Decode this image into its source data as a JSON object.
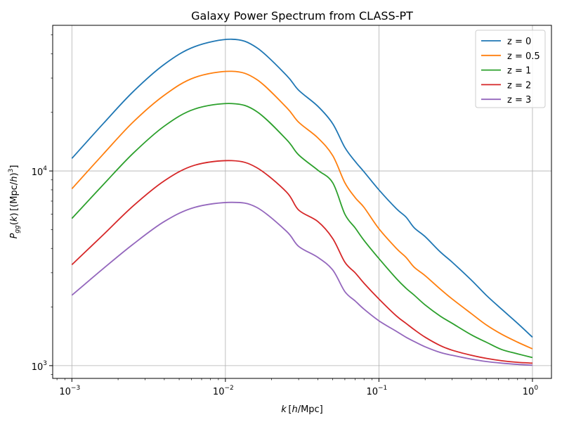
{
  "chart_data": {
    "type": "line",
    "title": "Galaxy Power Spectrum from CLASS-PT",
    "xlabel": "k [h/Mpc]",
    "ylabel": "P_gg(k) [(Mpc/h)^3]",
    "x_scale": "log",
    "y_scale": "log",
    "xlim": [
      0.00075,
      1.33
    ],
    "ylim": [
      860,
      56000
    ],
    "grid": true,
    "legend_position": "top-right",
    "x_ticks": [
      {
        "value": 0.001,
        "base": "10",
        "exp": "−3"
      },
      {
        "value": 0.01,
        "base": "10",
        "exp": "−2"
      },
      {
        "value": 0.1,
        "base": "10",
        "exp": "−1"
      },
      {
        "value": 1,
        "base": "10",
        "exp": "0"
      }
    ],
    "y_ticks": [
      {
        "value": 1000,
        "base": "10",
        "exp": "3"
      },
      {
        "value": 10000,
        "base": "10",
        "exp": "4"
      }
    ],
    "x": [
      0.001,
      0.0016,
      0.0025,
      0.004,
      0.0063,
      0.011,
      0.016,
      0.025,
      0.03,
      0.04,
      0.05,
      0.06,
      0.07,
      0.08,
      0.1,
      0.13,
      0.15,
      0.17,
      0.2,
      0.25,
      0.3,
      0.4,
      0.5,
      0.63,
      0.8,
      1.0
    ],
    "series": [
      {
        "name": "z = 0",
        "color": "#1f77b4",
        "values": [
          11600,
          17500,
          25500,
          35300,
          43500,
          47500,
          43000,
          31000,
          26000,
          21500,
          17500,
          13200,
          11200,
          9900,
          8000,
          6400,
          5800,
          5100,
          4600,
          3850,
          3400,
          2750,
          2300,
          1950,
          1650,
          1400
        ]
      },
      {
        "name": "z = 0.5",
        "color": "#ff7f0e",
        "values": [
          8100,
          12200,
          17800,
          24500,
          30200,
          32500,
          29500,
          21200,
          17800,
          14800,
          12000,
          8700,
          7300,
          6500,
          5050,
          4000,
          3600,
          3200,
          2900,
          2480,
          2200,
          1850,
          1620,
          1450,
          1320,
          1220
        ]
      },
      {
        "name": "z = 1",
        "color": "#2ca02c",
        "values": [
          5700,
          8500,
          12300,
          17000,
          20800,
          22200,
          20200,
          14500,
          12100,
          10100,
          8700,
          6000,
          5100,
          4400,
          3550,
          2800,
          2500,
          2300,
          2050,
          1800,
          1650,
          1440,
          1320,
          1210,
          1150,
          1100
        ]
      },
      {
        "name": "z = 2",
        "color": "#d62728",
        "values": [
          3300,
          4700,
          6600,
          8900,
          10700,
          11300,
          10400,
          7800,
          6300,
          5500,
          4500,
          3400,
          3000,
          2650,
          2200,
          1800,
          1650,
          1530,
          1400,
          1270,
          1200,
          1130,
          1090,
          1060,
          1040,
          1030
        ]
      },
      {
        "name": "z = 3",
        "color": "#9467bd",
        "values": [
          2300,
          3150,
          4200,
          5500,
          6500,
          6900,
          6500,
          4900,
          4100,
          3600,
          3100,
          2400,
          2150,
          1950,
          1700,
          1500,
          1400,
          1330,
          1250,
          1170,
          1130,
          1080,
          1050,
          1030,
          1015,
          1005
        ]
      }
    ]
  }
}
